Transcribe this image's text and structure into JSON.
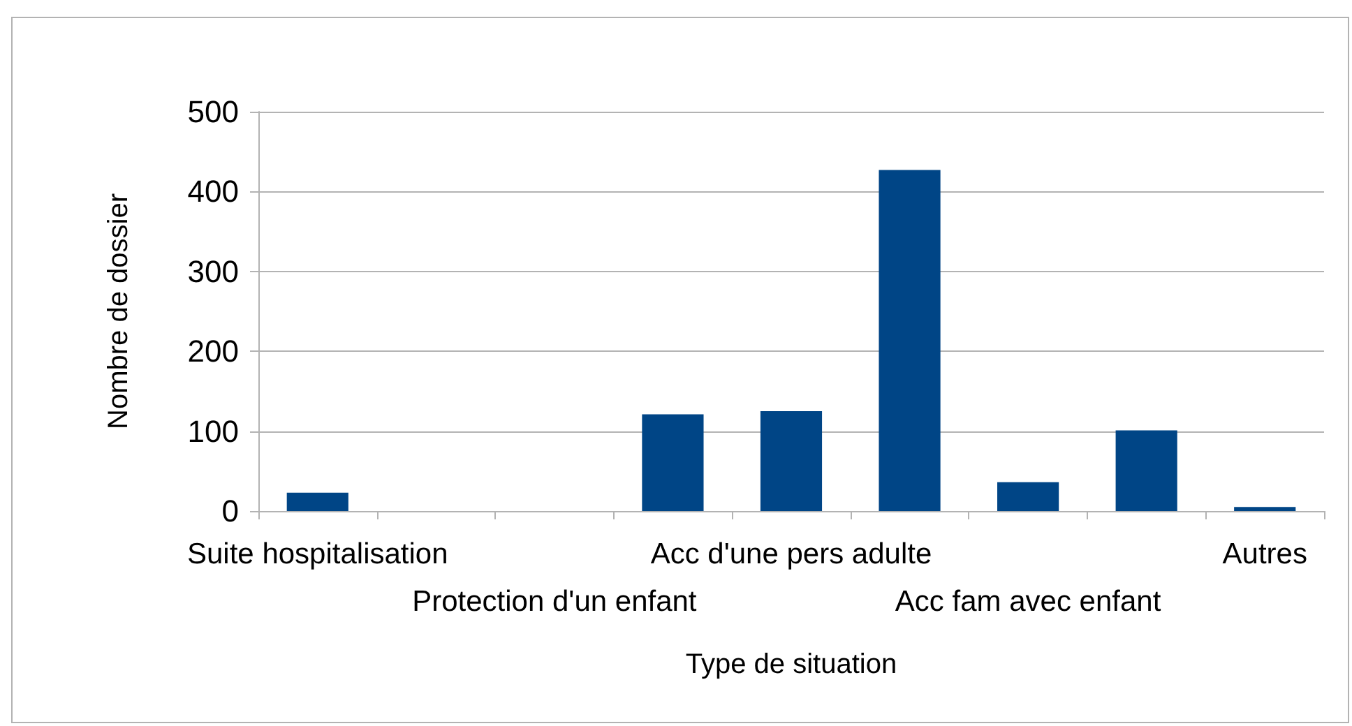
{
  "chart_data": {
    "type": "bar",
    "xlabel": "Type de situation",
    "ylabel": "Nombre de dossier",
    "categories": [
      "Suite hospitalisation",
      null,
      "Protection d'un enfant",
      null,
      "Acc d'une pers adulte",
      null,
      "Acc fam avec enfant",
      null,
      "Autres"
    ],
    "values": [
      23,
      0,
      0,
      121,
      125,
      427,
      36,
      101,
      5
    ],
    "color": "#004586",
    "ylim": [
      0,
      500
    ],
    "yticks": [
      0,
      100,
      200,
      300,
      400,
      500
    ],
    "grid": "y"
  }
}
